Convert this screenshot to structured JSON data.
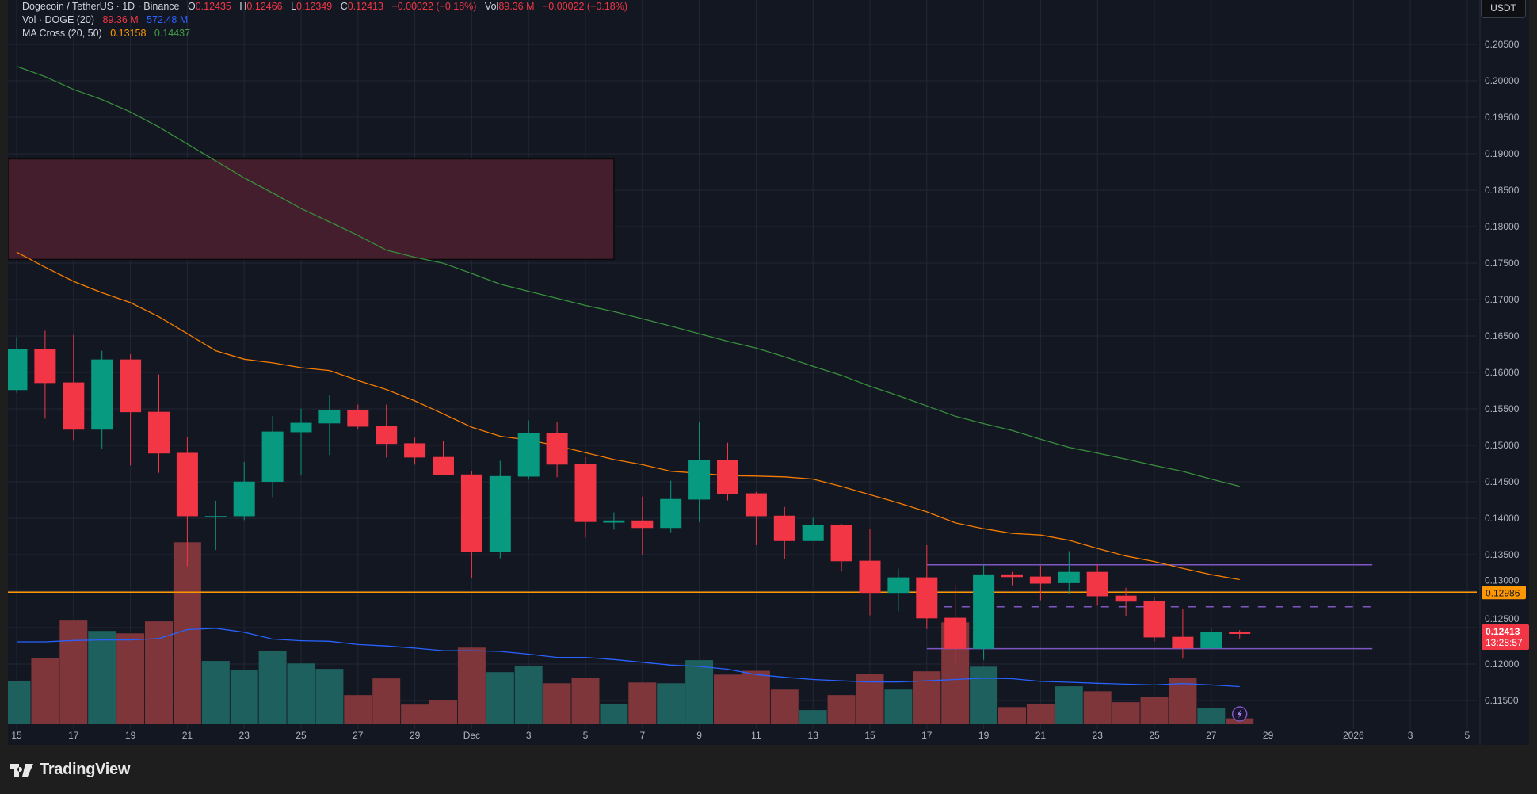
{
  "legend": {
    "symbol": "Dogecoin / TetherUS · 1D · Binance",
    "o_label": "O",
    "o": "0.12435",
    "h_label": "H",
    "h": "0.12466",
    "l_label": "L",
    "l": "0.12349",
    "c_label": "C",
    "c": "0.12413",
    "change": "−0.00022 (−0.18%)",
    "vol_label": "Vol",
    "vol": "89.36 M",
    "vol_change": "−0.00022 (−0.18%)",
    "vol_ind": "Vol · DOGE (20)",
    "vol_ind_v1": "89.36 M",
    "vol_ind_v2": "572.48 M",
    "ma_ind": "MA Cross (20, 50)",
    "ma_v1": "0.13158",
    "ma_v2": "0.14437"
  },
  "currency_button": "USDT",
  "footer": {
    "brand": "TradingView"
  },
  "colors": {
    "up": "#089981",
    "down": "#f23645",
    "vol_up": "#1e605d",
    "vol_down": "#7e363b",
    "ma20": "#f57c00",
    "ma50": "#388e3c",
    "vol_ma": "#2962ff",
    "hline": "#ff9800",
    "range": "#7e57c2",
    "zone": "#4a1f2d",
    "bg": "#131722",
    "grid": "#232734"
  },
  "chart_data": {
    "type": "candlestick",
    "title": "Dogecoin / TetherUS · 1D · Binance",
    "start_date": "2025-11-15",
    "ylim": [
      0.1125,
      0.2075
    ],
    "y_ticks": [
      "0.20500",
      "0.20000",
      "0.19500",
      "0.19000",
      "0.18500",
      "0.18000",
      "0.17500",
      "0.17000",
      "0.16500",
      "0.16000",
      "0.15500",
      "0.15000",
      "0.14500",
      "0.14000",
      "0.13500",
      "0.13000",
      "0.12500",
      "0.12000",
      "0.11500"
    ],
    "x_ticks": [
      {
        "date": "2025-11-15",
        "label": "15"
      },
      {
        "date": "2025-11-17",
        "label": "17"
      },
      {
        "date": "2025-11-19",
        "label": "19"
      },
      {
        "date": "2025-11-21",
        "label": "21"
      },
      {
        "date": "2025-11-23",
        "label": "23"
      },
      {
        "date": "2025-11-25",
        "label": "25"
      },
      {
        "date": "2025-11-27",
        "label": "27"
      },
      {
        "date": "2025-11-29",
        "label": "29"
      },
      {
        "date": "2025-12-01",
        "label": "Dec"
      },
      {
        "date": "2025-12-03",
        "label": "3"
      },
      {
        "date": "2025-12-05",
        "label": "5"
      },
      {
        "date": "2025-12-07",
        "label": "7"
      },
      {
        "date": "2025-12-09",
        "label": "9"
      },
      {
        "date": "2025-12-11",
        "label": "11"
      },
      {
        "date": "2025-12-13",
        "label": "13"
      },
      {
        "date": "2025-12-15",
        "label": "15"
      },
      {
        "date": "2025-12-17",
        "label": "17"
      },
      {
        "date": "2025-12-19",
        "label": "19"
      },
      {
        "date": "2025-12-21",
        "label": "21"
      },
      {
        "date": "2025-12-23",
        "label": "23"
      },
      {
        "date": "2025-12-25",
        "label": "25"
      },
      {
        "date": "2025-12-27",
        "label": "27"
      },
      {
        "date": "2025-12-29",
        "label": "29"
      },
      {
        "date": "2026-01-01",
        "label": "2026"
      },
      {
        "date": "2026-01-03",
        "label": "3"
      },
      {
        "date": "2026-01-05",
        "label": "5"
      }
    ],
    "ohlc": [
      [
        0.15758,
        0.16485,
        0.15721,
        0.1632
      ],
      [
        0.1632,
        0.16571,
        0.15365,
        0.15855
      ],
      [
        0.15863,
        0.16515,
        0.15073,
        0.15215
      ],
      [
        0.15215,
        0.16297,
        0.14953,
        0.16178
      ],
      [
        0.16178,
        0.16252,
        0.14724,
        0.15455
      ],
      [
        0.1546,
        0.15971,
        0.14623,
        0.14889
      ],
      [
        0.14897,
        0.15114,
        0.13339,
        0.14028
      ],
      [
        0.1403,
        0.14241,
        0.13564,
        0.1403
      ],
      [
        0.14028,
        0.14773,
        0.13975,
        0.14503
      ],
      [
        0.145,
        0.15402,
        0.1429,
        0.15189
      ],
      [
        0.1518,
        0.15503,
        0.14593,
        0.15309
      ],
      [
        0.15301,
        0.15691,
        0.14867,
        0.15481
      ],
      [
        0.15481,
        0.1556,
        0.15215,
        0.15256
      ],
      [
        0.15264,
        0.1556,
        0.14833,
        0.1502
      ],
      [
        0.15028,
        0.15103,
        0.14736,
        0.14833
      ],
      [
        0.1484,
        0.15058,
        0.1459,
        0.14593
      ],
      [
        0.146,
        0.14642,
        0.13182,
        0.13541
      ],
      [
        0.13541,
        0.14788,
        0.13451,
        0.14578
      ],
      [
        0.14571,
        0.15342,
        0.1453,
        0.15166
      ],
      [
        0.15166,
        0.1532,
        0.14563,
        0.14736
      ],
      [
        0.1474,
        0.14837,
        0.13736,
        0.13949
      ],
      [
        0.1394,
        0.1408,
        0.13844,
        0.1397
      ],
      [
        0.1397,
        0.14298,
        0.13496,
        0.13867
      ],
      [
        0.13867,
        0.14515,
        0.13807,
        0.14264
      ],
      [
        0.14256,
        0.1532,
        0.13949,
        0.14799
      ],
      [
        0.14799,
        0.15035,
        0.14245,
        0.14335
      ],
      [
        0.14342,
        0.14361,
        0.13631,
        0.14028
      ],
      [
        0.14035,
        0.14155,
        0.13444,
        0.13687
      ],
      [
        0.13687,
        0.14005,
        0.13687,
        0.13904
      ],
      [
        0.13904,
        0.13923,
        0.13268,
        0.1341
      ],
      [
        0.13417,
        0.13856,
        0.12668,
        0.12976
      ],
      [
        0.12976,
        0.13309,
        0.12725,
        0.13189
      ],
      [
        0.13189,
        0.13631,
        0.12481,
        0.12627
      ],
      [
        0.12635,
        0.1308,
        0.12002,
        0.12208
      ],
      [
        0.12208,
        0.13361,
        0.12058,
        0.1323
      ],
      [
        0.1323,
        0.13264,
        0.1308,
        0.13193
      ],
      [
        0.132,
        0.1335,
        0.12874,
        0.13103
      ],
      [
        0.1311,
        0.13549,
        0.1296,
        0.13264
      ],
      [
        0.13264,
        0.13369,
        0.128,
        0.1293
      ],
      [
        0.12938,
        0.13047,
        0.12657,
        0.12856
      ],
      [
        0.12863,
        0.12916,
        0.12309,
        0.12365
      ],
      [
        0.12373,
        0.12755,
        0.12073,
        0.12215
      ],
      [
        0.12215,
        0.12492,
        0.12215,
        0.12435
      ],
      [
        0.12435,
        0.12466,
        0.12349,
        0.12413
      ]
    ],
    "volume_M": [
      660,
      1008,
      1577,
      1419,
      1382,
      1565,
      2768,
      963,
      830,
      1120,
      925,
      842,
      444,
      697,
      299,
      361,
      1166,
      793,
      892,
      623,
      710,
      311,
      635,
      623,
      975,
      755,
      813,
      527,
      216,
      444,
      768,
      527,
      805,
      1550,
      876,
      261,
      311,
      577,
      502,
      336,
      419,
      710,
      249,
      89.36
    ],
    "ma20": [
      0.1765,
      0.17444,
      0.17249,
      0.17094,
      0.16958,
      0.16764,
      0.16531,
      0.16298,
      0.16181,
      0.16131,
      0.16065,
      0.16026,
      0.1589,
      0.15765,
      0.1561,
      0.15431,
      0.15249,
      0.15125,
      0.15073,
      0.14995,
      0.149,
      0.14805,
      0.14735,
      0.14645,
      0.14616,
      0.14585,
      0.14578,
      0.14567,
      0.14537,
      0.14436,
      0.14324,
      0.14211,
      0.14088,
      0.13938,
      0.13856,
      0.13792,
      0.1377,
      0.13698,
      0.13586,
      0.13481,
      0.13406,
      0.13313,
      0.13226,
      0.13158
    ],
    "ma50": [
      0.202,
      0.20058,
      0.19883,
      0.19744,
      0.19573,
      0.19367,
      0.19134,
      0.18901,
      0.18668,
      0.18462,
      0.18249,
      0.18065,
      0.17879,
      0.17677,
      0.1758,
      0.17498,
      0.17358,
      0.17211,
      0.17113,
      0.17016,
      0.16919,
      0.16834,
      0.16737,
      0.16636,
      0.16531,
      0.16426,
      0.16335,
      0.16215,
      0.16084,
      0.1596,
      0.15811,
      0.1568,
      0.15541,
      0.15399,
      0.15298,
      0.15204,
      0.15084,
      0.14972,
      0.14893,
      0.14811,
      0.14724,
      0.14642,
      0.14537,
      0.14437
    ],
    "vol_ma_M": [
      1253,
      1253,
      1274,
      1282,
      1282,
      1303,
      1440,
      1461,
      1399,
      1295,
      1270,
      1262,
      1212,
      1191,
      1158,
      1120,
      1120,
      1108,
      1066,
      1017,
      1017,
      984,
      942,
      900,
      880,
      838,
      755,
      714,
      681,
      660,
      643,
      643,
      660,
      681,
      701,
      693,
      652,
      639,
      623,
      610,
      598,
      618,
      598,
      572.48
    ],
    "horizontal_line": {
      "price": 0.12986,
      "label": "0.12986"
    },
    "last_price": {
      "label": "0.12413",
      "countdown": "13:28:57"
    },
    "range_box": {
      "start": "2025-12-17",
      "end": "2026-01-02",
      "top": 0.13361,
      "mid": 0.12785,
      "bottom": 0.12211
    },
    "supply_zone": {
      "start": "2025-11-01",
      "end": "2025-12-06",
      "top": 0.1893,
      "bottom": 0.1755
    }
  }
}
